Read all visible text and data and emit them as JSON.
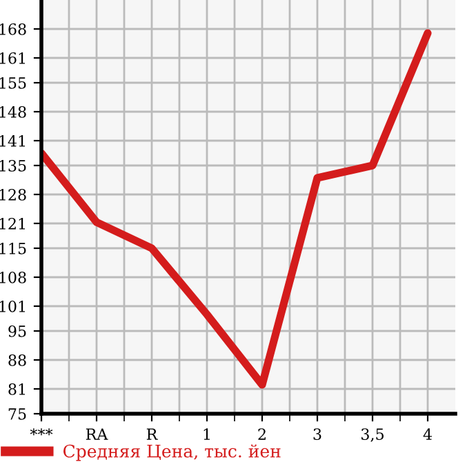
{
  "chart_data": {
    "type": "line",
    "categories": [
      "***",
      "RA",
      "R",
      "1",
      "2",
      "3",
      "3,5",
      "4"
    ],
    "series": [
      {
        "name": "Средняя Цена, тыс. йен",
        "color": "#d41c1c",
        "values": [
          138,
          121.3,
          115,
          99,
          82,
          132,
          135,
          167
        ]
      }
    ],
    "ylim": [
      75,
      175
    ],
    "yticks": [
      75,
      81,
      88,
      95,
      101,
      108,
      115,
      121,
      128,
      135,
      141,
      148,
      155,
      161,
      168
    ],
    "grid": true,
    "legend": "bottom left",
    "marker": "none",
    "line_style": "solid"
  }
}
